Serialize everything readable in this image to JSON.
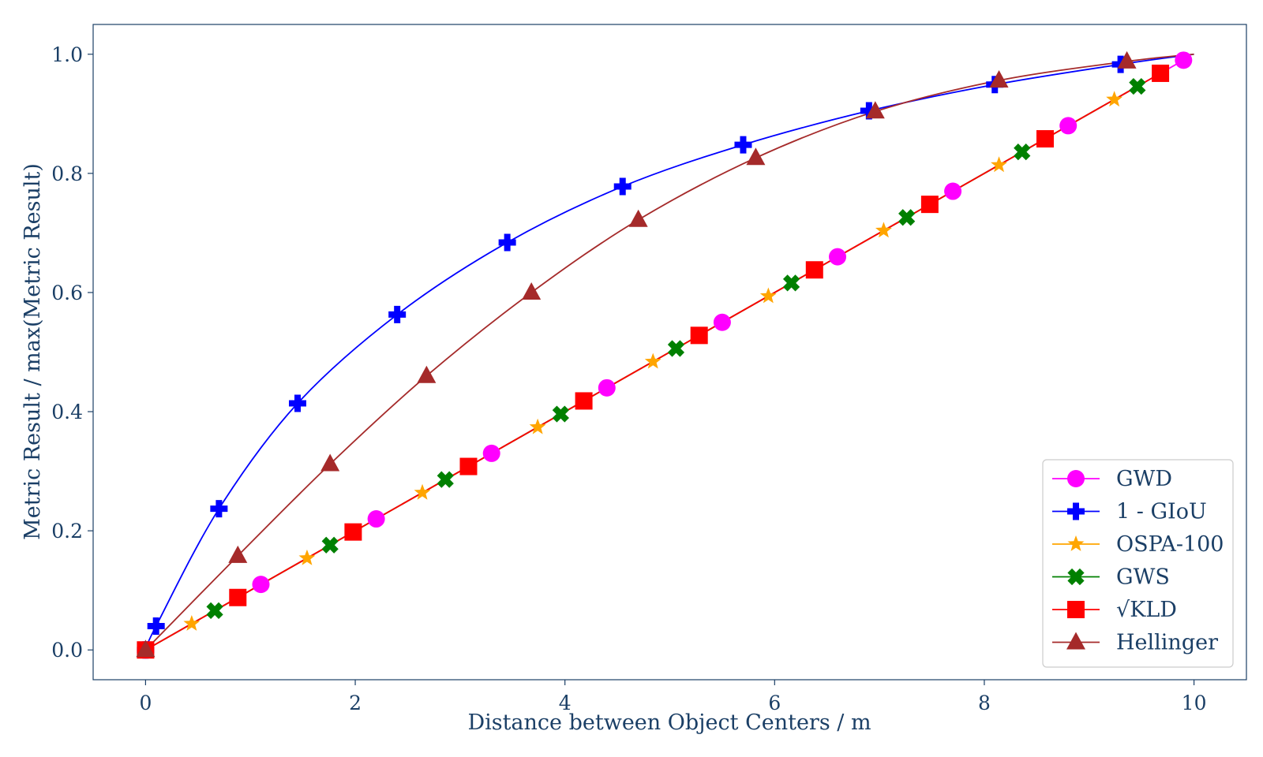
{
  "chart_data": {
    "type": "line",
    "xlabel": "Distance between Object Centers / m",
    "ylabel": "Metric Result / max(Metric Result)",
    "xlim": [
      -0.5,
      10.5
    ],
    "ylim": [
      -0.05,
      1.05
    ],
    "xticks": [
      "0",
      "2",
      "4",
      "6",
      "8",
      "10"
    ],
    "yticks": [
      "0.0",
      "0.2",
      "0.4",
      "0.6",
      "0.8",
      "1.0"
    ],
    "grid": false,
    "legend_position": "lower-right",
    "series": [
      {
        "name": "GWD",
        "color": "#ff00ff",
        "marker": "circle",
        "x": [
          0,
          1.1,
          2.2,
          3.3,
          4.4,
          5.5,
          6.6,
          7.7,
          8.8,
          9.9
        ],
        "y": [
          0,
          0.11,
          0.22,
          0.33,
          0.44,
          0.55,
          0.66,
          0.77,
          0.88,
          0.99
        ]
      },
      {
        "name": "1 - GIoU",
        "color": "#0000ff",
        "marker": "plus",
        "x": [
          0,
          0.1,
          0.7,
          1.45,
          2.4,
          3.45,
          4.55,
          5.7,
          6.9,
          8.1,
          9.3,
          10
        ],
        "y": [
          0,
          0.04,
          0.237,
          0.414,
          0.563,
          0.684,
          0.778,
          0.848,
          0.905,
          0.949,
          0.983,
          1.0
        ]
      },
      {
        "name": "OSPA-100",
        "color": "#ffa500",
        "marker": "star",
        "x": [
          0,
          0.44,
          1.54,
          2.64,
          3.74,
          4.84,
          5.94,
          7.04,
          8.14,
          9.24
        ],
        "y": [
          0,
          0.044,
          0.154,
          0.264,
          0.374,
          0.484,
          0.594,
          0.704,
          0.814,
          0.924
        ]
      },
      {
        "name": "GWS",
        "color": "#008000",
        "marker": "x",
        "x": [
          0,
          0.66,
          1.76,
          2.86,
          3.96,
          5.06,
          6.16,
          7.26,
          8.36,
          9.46
        ],
        "y": [
          0,
          0.066,
          0.176,
          0.286,
          0.396,
          0.506,
          0.616,
          0.726,
          0.836,
          0.946
        ]
      },
      {
        "name": "√KLD",
        "color": "#ff0000",
        "marker": "square",
        "x": [
          0,
          0.88,
          1.98,
          3.08,
          4.18,
          5.28,
          6.38,
          7.48,
          8.58,
          9.68
        ],
        "y": [
          0,
          0.088,
          0.198,
          0.308,
          0.418,
          0.528,
          0.638,
          0.748,
          0.858,
          0.968
        ]
      },
      {
        "name": "Hellinger",
        "color": "#a52a2a",
        "marker": "triangle",
        "x": [
          0,
          0.88,
          1.76,
          2.68,
          3.68,
          4.7,
          5.82,
          6.96,
          8.14,
          9.36,
          10
        ],
        "y": [
          0,
          0.158,
          0.312,
          0.46,
          0.6,
          0.722,
          0.826,
          0.904,
          0.956,
          0.988,
          1.0
        ]
      }
    ]
  }
}
